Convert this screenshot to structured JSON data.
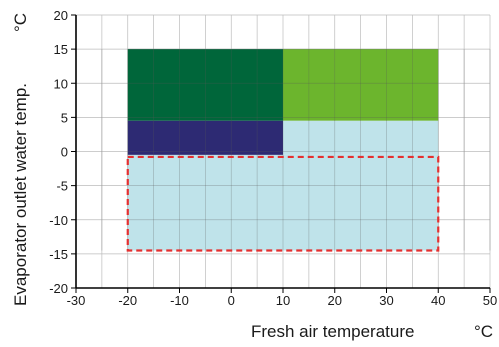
{
  "chart_data": {
    "type": "area",
    "title": "",
    "xlabel": "Fresh air temperature",
    "xunit": "°C",
    "ylabel": "Evaporator outlet water temp.",
    "yunit": "°C",
    "xlim": [
      -30,
      50
    ],
    "ylim": [
      -20,
      20
    ],
    "xticks": [
      -30,
      -20,
      -10,
      0,
      10,
      20,
      30,
      40,
      50
    ],
    "yticks": [
      20,
      15,
      10,
      5,
      0,
      -5,
      -10,
      -15,
      -20
    ],
    "grid": true,
    "regions": [
      {
        "x": [
          -20,
          10
        ],
        "y": [
          4.5,
          15
        ],
        "color": "#00663a"
      },
      {
        "x": [
          10,
          40
        ],
        "y": [
          4.5,
          15
        ],
        "color": "#6cb52d"
      },
      {
        "x": [
          -20,
          10
        ],
        "y": [
          -0.5,
          4.5
        ],
        "color": "#2d2a73"
      },
      {
        "x": [
          10,
          40
        ],
        "y": [
          -0.5,
          4.5
        ],
        "color": "#bfe3ea"
      },
      {
        "x": [
          -20,
          40
        ],
        "y": [
          -14.5,
          -0.5
        ],
        "color": "#bfe3ea"
      }
    ],
    "dashed_outline": {
      "x": [
        -20,
        40
      ],
      "y": [
        -14.5,
        -0.8
      ],
      "color": "#e53030"
    }
  }
}
